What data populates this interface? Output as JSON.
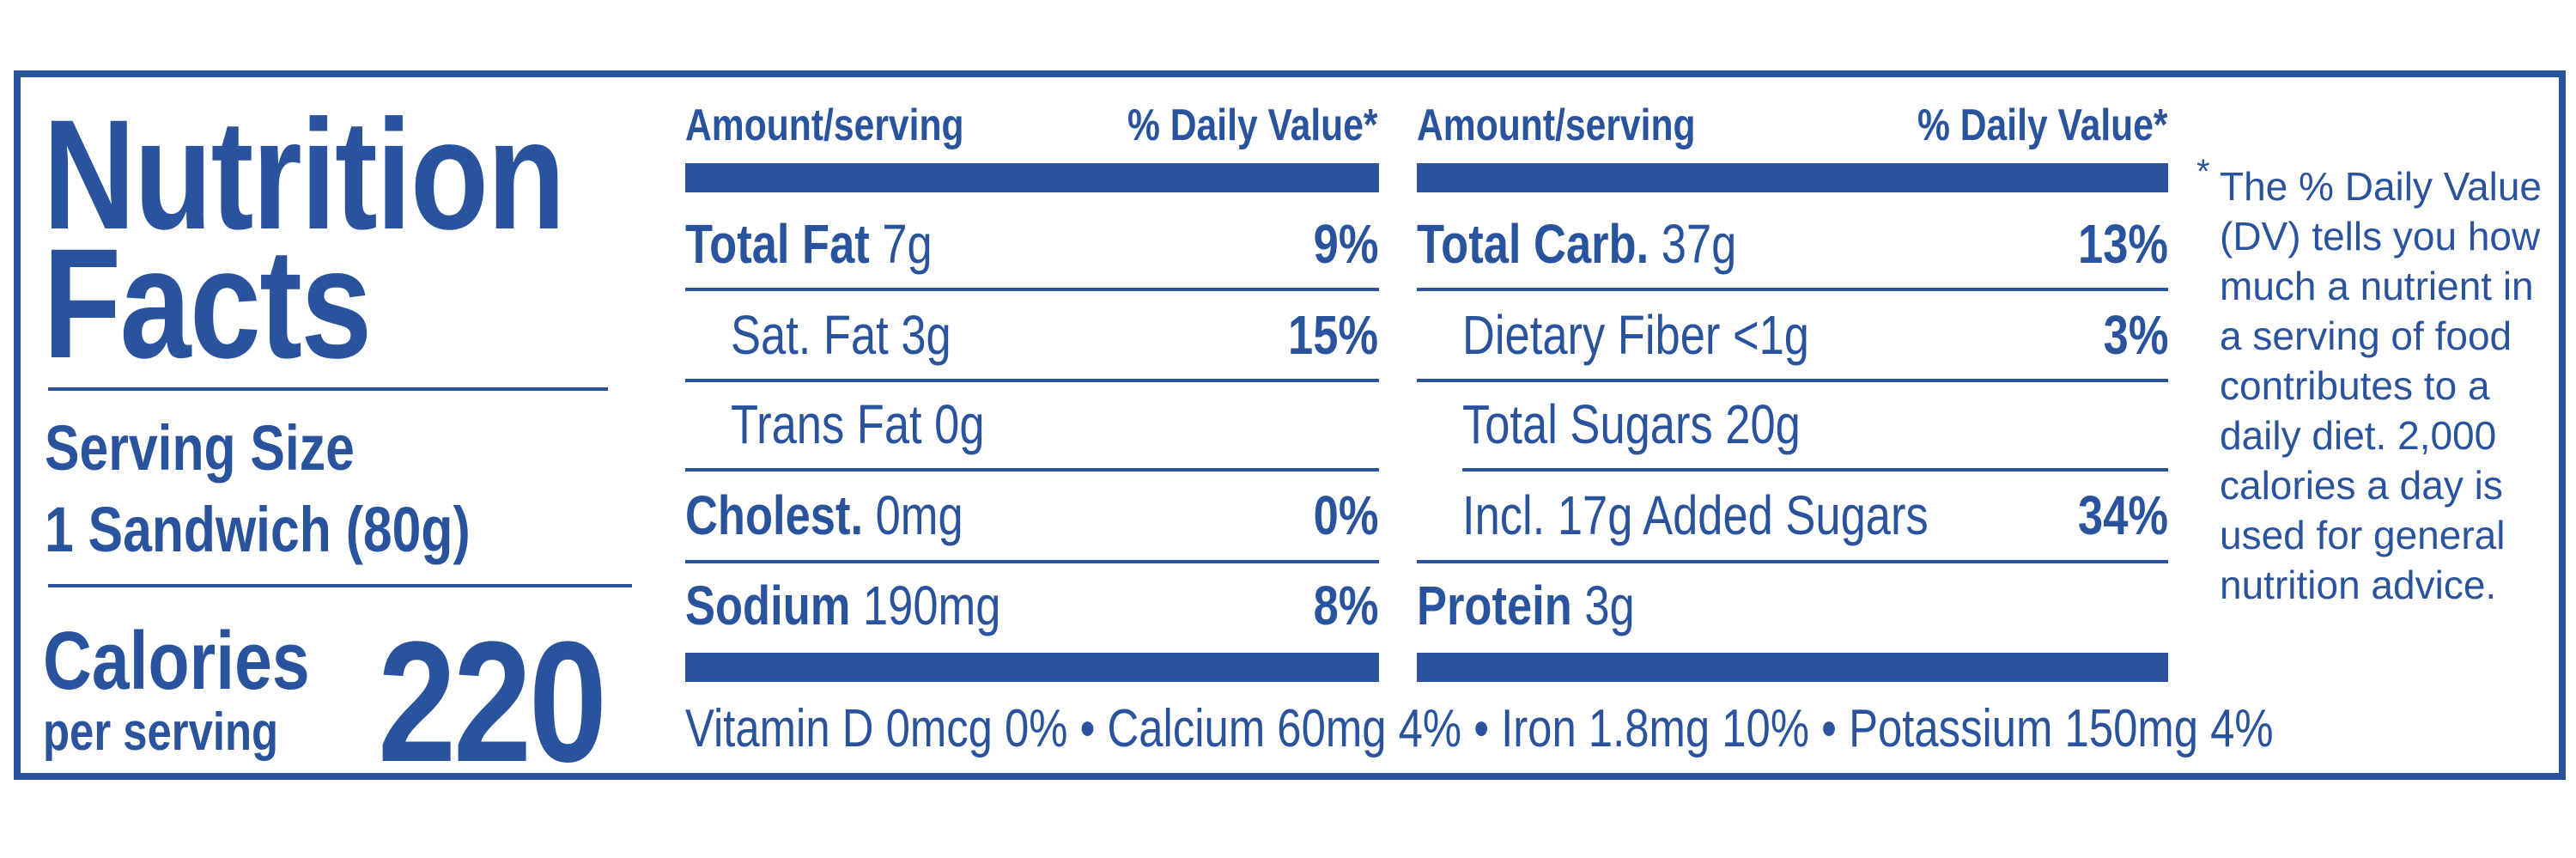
{
  "label": {
    "title_line1": "Nutrition",
    "title_line2": "Facts",
    "serving_size_label": "Serving Size",
    "serving_size_value": "1 Sandwich (80g)",
    "calories_label": "Calories",
    "calories_per": "per serving",
    "calories_value": "220",
    "col_amount": "Amount/serving",
    "col_dv": "% Daily Value*",
    "left_rows": [
      {
        "name": "Total Fat",
        "amount": "7g",
        "dv": "9%"
      },
      {
        "name": "Sat. Fat",
        "amount": "3g",
        "dv": "15%"
      },
      {
        "name": "Trans Fat",
        "amount": "0g",
        "dv": ""
      },
      {
        "name": "Cholest.",
        "amount": "0mg",
        "dv": "0%"
      },
      {
        "name": "Sodium",
        "amount": "190mg",
        "dv": "8%"
      }
    ],
    "right_rows": [
      {
        "name": "Total Carb.",
        "amount": "37g",
        "dv": "13%"
      },
      {
        "name": "Dietary Fiber",
        "amount": "<1g",
        "dv": "3%"
      },
      {
        "name": "Total Sugars",
        "amount": "20g",
        "dv": ""
      },
      {
        "name": "Incl. 17g Added Sugars",
        "amount": "",
        "dv": "34%"
      },
      {
        "name": "Protein",
        "amount": "3g",
        "dv": ""
      }
    ],
    "vitamins": "Vitamin D 0mcg 0% • Calcium 60mg 4% • Iron 1.8mg 10% • Potassium 150mg 4%",
    "footnote_star": "*",
    "footnote": "The % Daily Value (DV) tells you how much a nutrient in a serving of food contributes to a daily diet. 2,000 calories a day is used for general nutrition advice.",
    "color": "#2a539e"
  }
}
